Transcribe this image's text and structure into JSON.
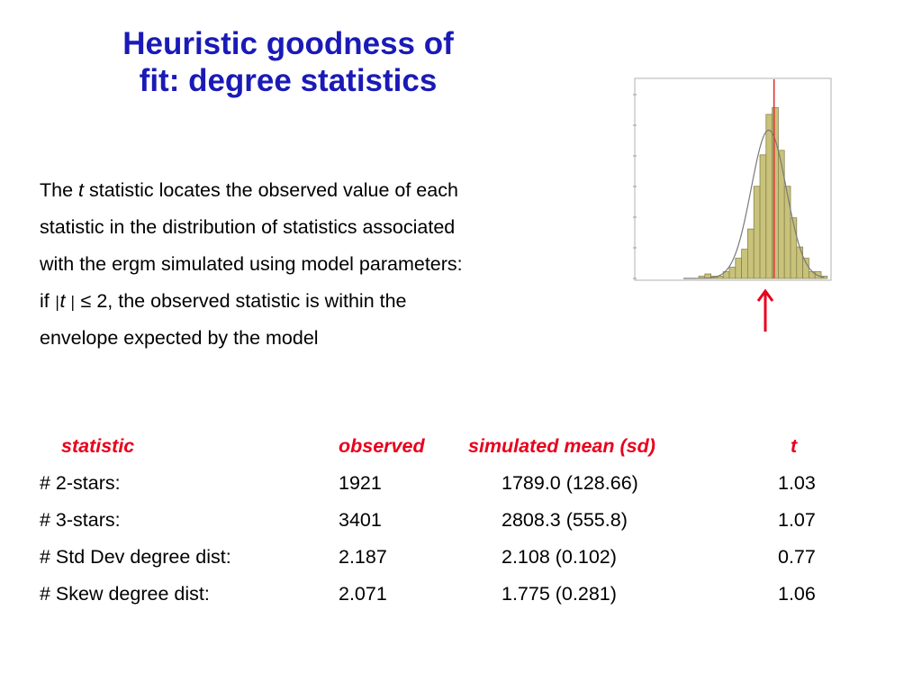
{
  "slide": {
    "title_line1": "Heuristic goodness of",
    "title_line2": "fit: degree statistics",
    "para": {
      "l1_a": "The ",
      "l1_t": "t",
      "l1_b": " statistic locates the observed value of each",
      "l2": "statistic in the distribution of statistics associated",
      "l3": "with the ergm simulated using model parameters:",
      "l4_a": "if ",
      "l4_abs1": "|",
      "l4_t": "t",
      "l4_abs2": " |",
      "l4_b": " ≤ 2, the observed statistic is within the",
      "l5": "envelope expected by the model"
    },
    "arrow_icon": "red-up-arrow",
    "table": {
      "headers": {
        "statistic": "statistic",
        "observed": "observed",
        "simulated": "simulated mean (sd)",
        "t": "t"
      },
      "rows": [
        {
          "statistic": "# 2-stars:",
          "observed": "1921",
          "simulated": "1789.0 (128.66)",
          "t": "1.03"
        },
        {
          "statistic": "# 3-stars:",
          "observed": "3401",
          "simulated": "2808.3 (555.8)",
          "t": "1.07"
        },
        {
          "statistic": "# Std Dev degree dist:",
          "observed": "2.187",
          "simulated": "2.108 (0.102)",
          "t": "0.77"
        },
        {
          "statistic": "# Skew degree dist:",
          "observed": "2.071",
          "simulated": "1.775 (0.281)",
          "t": "1.06"
        }
      ]
    },
    "colors": {
      "title": "#1a1ab8",
      "header": "#e8001c",
      "bar_fill": "#c8c27a",
      "bar_stroke": "#8a8450",
      "observed_line": "#e03030"
    }
  },
  "chart_data": {
    "type": "bar",
    "description_kind": "histogram with fitted normal curve and observed-value line",
    "bin_heights": [
      0,
      0,
      0,
      0,
      0,
      0,
      0,
      0,
      0,
      0,
      1,
      2,
      1,
      1,
      3,
      5,
      9,
      13,
      22,
      41,
      55,
      73,
      76,
      57,
      41,
      27,
      14,
      9,
      3,
      3,
      1
    ],
    "observed_line_bin": 22.3,
    "ylim": [
      0,
      85
    ]
  }
}
